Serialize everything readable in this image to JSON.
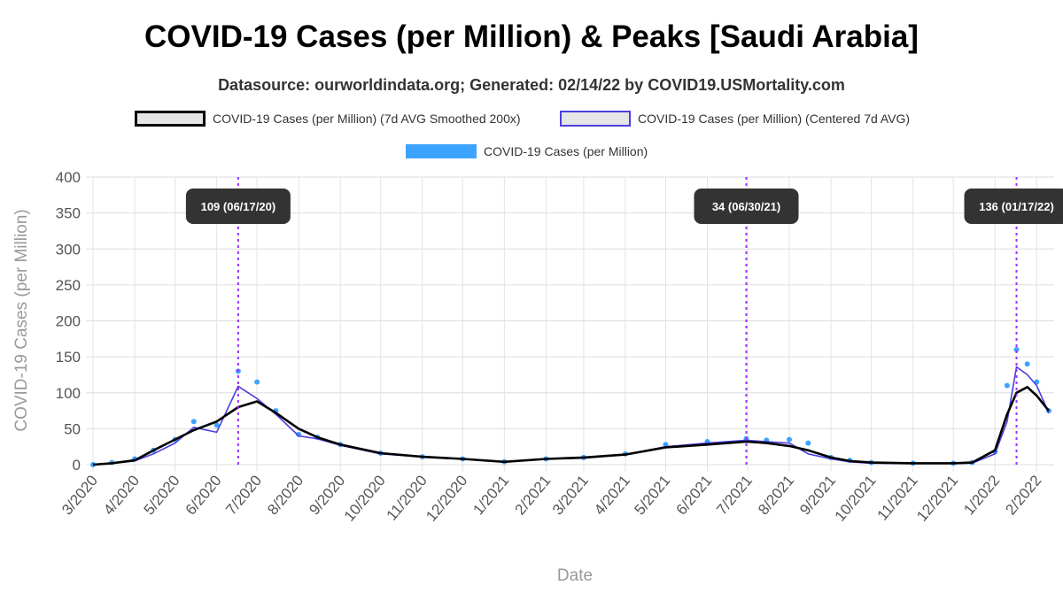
{
  "title": "COVID-19 Cases (per Million) & Peaks [Saudi Arabia]",
  "subtitle": "Datasource: ourworldindata.org; Generated: 02/14/22 by COVID19.USMortality.com",
  "legend": [
    {
      "label": "COVID-19 Cases (per Million) (7d AVG Smoothed 200x)",
      "color": "#000000",
      "fill": "#e6e6e6"
    },
    {
      "label": "COVID-19 Cases (per Million) (Centered 7d AVG)",
      "color": "#4b3fe0",
      "fill": "#e6e6e6"
    },
    {
      "label": "COVID-19 Cases (per Million)",
      "color": "#3ca3ff",
      "fill": "#3ca3ff"
    }
  ],
  "chart_data": {
    "type": "line",
    "title": "COVID-19 Cases (per Million) & Peaks [Saudi Arabia]",
    "subtitle": "Datasource: ourworldindata.org; Generated: 02/14/22 by COVID19.USMortality.com",
    "xlabel": "Date",
    "ylabel": "COVID-19 Cases (per Million)",
    "ylim": [
      0,
      400
    ],
    "yticks": [
      "0",
      "50",
      "100",
      "150",
      "200",
      "250",
      "300",
      "350",
      "400"
    ],
    "xtick_labels": [
      "3/2020",
      "4/2020",
      "5/2020",
      "6/2020",
      "7/2020",
      "8/2020",
      "9/2020",
      "10/2020",
      "11/2020",
      "12/2020",
      "1/2021",
      "2/2021",
      "3/2021",
      "4/2021",
      "5/2021",
      "6/2021",
      "7/2021",
      "8/2021",
      "9/2021",
      "10/2021",
      "11/2021",
      "12/2021",
      "1/2022",
      "2/2022"
    ],
    "grid": true,
    "legend_position": "top",
    "x": [
      "2020-03-01",
      "2020-03-15",
      "2020-04-01",
      "2020-04-15",
      "2020-05-01",
      "2020-05-15",
      "2020-06-01",
      "2020-06-17",
      "2020-07-01",
      "2020-07-15",
      "2020-08-01",
      "2020-08-15",
      "2020-09-01",
      "2020-10-01",
      "2020-11-01",
      "2020-12-01",
      "2021-01-01",
      "2021-02-01",
      "2021-03-01",
      "2021-04-01",
      "2021-05-01",
      "2021-06-01",
      "2021-06-30",
      "2021-07-15",
      "2021-08-01",
      "2021-08-15",
      "2021-09-01",
      "2021-09-15",
      "2021-10-01",
      "2021-11-01",
      "2021-12-01",
      "2021-12-15",
      "2022-01-01",
      "2022-01-10",
      "2022-01-17",
      "2022-01-25",
      "2022-02-01",
      "2022-02-10"
    ],
    "series": [
      {
        "name": "COVID-19 Cases (per Million) (7d AVG Smoothed 200x)",
        "color": "#000000",
        "values": [
          0,
          2,
          6,
          20,
          35,
          48,
          60,
          80,
          88,
          72,
          50,
          38,
          28,
          16,
          11,
          8,
          4,
          8,
          10,
          14,
          24,
          28,
          32,
          30,
          26,
          20,
          10,
          5,
          3,
          2,
          2,
          3,
          20,
          70,
          100,
          108,
          96,
          75
        ]
      },
      {
        "name": "COVID-19 Cases (per Million) (Centered 7d AVG)",
        "color": "#4b3fe0",
        "values": [
          0,
          2,
          5,
          15,
          30,
          52,
          45,
          109,
          92,
          70,
          40,
          36,
          27,
          15,
          11,
          8,
          4,
          8,
          9,
          14,
          25,
          30,
          34,
          32,
          30,
          15,
          8,
          4,
          2,
          2,
          2,
          2,
          15,
          60,
          136,
          125,
          110,
          72
        ]
      },
      {
        "name": "COVID-19 Cases (per Million)",
        "color": "#3ca3ff",
        "values": [
          0,
          3,
          8,
          20,
          35,
          60,
          55,
          130,
          115,
          75,
          42,
          38,
          28,
          16,
          11,
          8,
          4,
          8,
          10,
          15,
          28,
          32,
          36,
          34,
          35,
          30,
          10,
          6,
          3,
          2,
          2,
          3,
          18,
          110,
          160,
          140,
          115,
          75
        ]
      }
    ],
    "peaks": [
      {
        "date": "2020-06-17",
        "label": "109 (06/17/20)"
      },
      {
        "date": "2021-06-30",
        "label": "34 (06/30/21)"
      },
      {
        "date": "2022-01-17",
        "label": "136 (01/17/22)"
      }
    ]
  }
}
